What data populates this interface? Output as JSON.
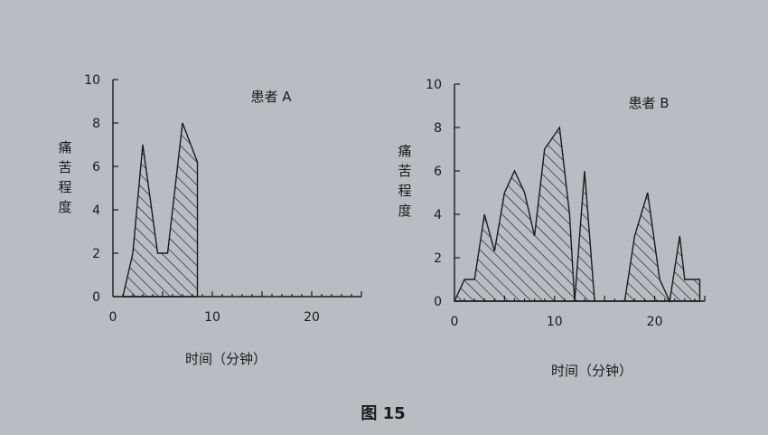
{
  "figure_caption": "图 15",
  "chart_data": [
    {
      "type": "area",
      "title": "患者 A",
      "xlabel": "时间（分钟）",
      "ylabel": "痛苦程度",
      "xlim": [
        0,
        25
      ],
      "ylim": [
        0,
        10
      ],
      "x_ticks": [
        0,
        10,
        20
      ],
      "y_ticks": [
        0,
        2,
        4,
        6,
        8,
        10
      ],
      "x": [
        1,
        2,
        3,
        4.5,
        5,
        5.5,
        7,
        8.5,
        8.5
      ],
      "y": [
        0,
        2,
        7,
        2,
        2,
        2,
        8,
        6.2,
        0
      ]
    },
    {
      "type": "area",
      "title": "患者 B",
      "xlabel": "时间（分钟）",
      "ylabel": "痛苦程度",
      "xlim": [
        0,
        25
      ],
      "ylim": [
        0,
        10
      ],
      "x_ticks": [
        0,
        10,
        20
      ],
      "y_ticks": [
        0,
        2,
        4,
        6,
        8,
        10
      ],
      "x": [
        0,
        1,
        2,
        3,
        4,
        5,
        6,
        7,
        8,
        9,
        10.5,
        11.5,
        12,
        13,
        14,
        14,
        17,
        18,
        19.3,
        20.5,
        21.5,
        22.5,
        23,
        23.5,
        24.5,
        24.5
      ],
      "y": [
        0,
        1,
        1,
        4,
        2.3,
        5,
        6,
        5,
        3,
        7,
        8,
        4,
        0,
        6,
        0,
        0,
        0,
        3,
        5,
        1,
        0,
        3,
        1,
        1,
        1,
        0
      ]
    }
  ]
}
